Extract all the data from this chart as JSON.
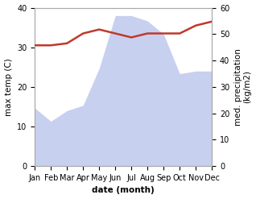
{
  "months": [
    "Jan",
    "Feb",
    "Mar",
    "Apr",
    "May",
    "Jun",
    "Jul",
    "Aug",
    "Sep",
    "Oct",
    "Nov",
    "Dec"
  ],
  "temp_C": [
    30.5,
    30.5,
    31.0,
    33.5,
    34.5,
    33.5,
    32.5,
    33.5,
    33.5,
    33.5,
    35.5,
    36.5
  ],
  "precip_kg": [
    22,
    17,
    21,
    23,
    37,
    57,
    57,
    55,
    50,
    35,
    36,
    36
  ],
  "temp_color": "#c0392b",
  "precip_fill_color": "#c8d0f0",
  "bg_color": "#ffffff",
  "xlabel": "date (month)",
  "ylabel_left": "max temp (C)",
  "ylabel_right": "med. precipitation\n(kg/m2)",
  "ylim_left": [
    0,
    40
  ],
  "ylim_right": [
    0,
    60
  ],
  "yticks_left": [
    0,
    10,
    20,
    30,
    40
  ],
  "yticks_right": [
    0,
    10,
    20,
    30,
    40,
    50,
    60
  ],
  "label_fontsize": 7.5,
  "tick_fontsize": 7
}
